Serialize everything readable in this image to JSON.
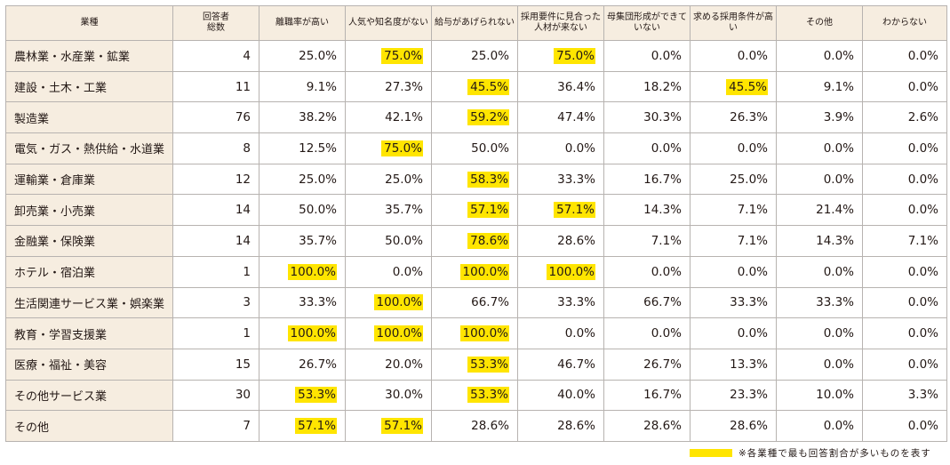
{
  "table": {
    "headers": [
      "業種",
      "回答者\n総数",
      "離職率が高い",
      "人気や知名度がない",
      "給与があげられない",
      "採用要件に見合った人材が来ない",
      "母集団形成ができていない",
      "求める採用条件が高い",
      "その他",
      "わからない"
    ],
    "rows": [
      {
        "industry": "農林業・水産業・鉱業",
        "total": "4",
        "values": [
          "25.0%",
          "75.0%",
          "25.0%",
          "75.0%",
          "0.0%",
          "0.0%",
          "0.0%",
          "0.0%"
        ],
        "highlight": [
          false,
          true,
          false,
          true,
          false,
          false,
          false,
          false
        ]
      },
      {
        "industry": "建設・土木・工業",
        "total": "11",
        "values": [
          "9.1%",
          "27.3%",
          "45.5%",
          "36.4%",
          "18.2%",
          "45.5%",
          "9.1%",
          "0.0%"
        ],
        "highlight": [
          false,
          false,
          true,
          false,
          false,
          true,
          false,
          false
        ]
      },
      {
        "industry": "製造業",
        "total": "76",
        "values": [
          "38.2%",
          "42.1%",
          "59.2%",
          "47.4%",
          "30.3%",
          "26.3%",
          "3.9%",
          "2.6%"
        ],
        "highlight": [
          false,
          false,
          true,
          false,
          false,
          false,
          false,
          false
        ]
      },
      {
        "industry": "電気・ガス・熱供給・水道業",
        "total": "8",
        "values": [
          "12.5%",
          "75.0%",
          "50.0%",
          "0.0%",
          "0.0%",
          "0.0%",
          "0.0%",
          "0.0%"
        ],
        "highlight": [
          false,
          true,
          false,
          false,
          false,
          false,
          false,
          false
        ]
      },
      {
        "industry": "運輸業・倉庫業",
        "total": "12",
        "values": [
          "25.0%",
          "25.0%",
          "58.3%",
          "33.3%",
          "16.7%",
          "25.0%",
          "0.0%",
          "0.0%"
        ],
        "highlight": [
          false,
          false,
          true,
          false,
          false,
          false,
          false,
          false
        ]
      },
      {
        "industry": "卸売業・小売業",
        "total": "14",
        "values": [
          "50.0%",
          "35.7%",
          "57.1%",
          "57.1%",
          "14.3%",
          "7.1%",
          "21.4%",
          "0.0%"
        ],
        "highlight": [
          false,
          false,
          true,
          true,
          false,
          false,
          false,
          false
        ]
      },
      {
        "industry": "金融業・保険業",
        "total": "14",
        "values": [
          "35.7%",
          "50.0%",
          "78.6%",
          "28.6%",
          "7.1%",
          "7.1%",
          "14.3%",
          "7.1%"
        ],
        "highlight": [
          false,
          false,
          true,
          false,
          false,
          false,
          false,
          false
        ]
      },
      {
        "industry": "ホテル・宿泊業",
        "total": "1",
        "values": [
          "100.0%",
          "0.0%",
          "100.0%",
          "100.0%",
          "0.0%",
          "0.0%",
          "0.0%",
          "0.0%"
        ],
        "highlight": [
          true,
          false,
          true,
          true,
          false,
          false,
          false,
          false
        ]
      },
      {
        "industry": "生活関連サービス業・娯楽業",
        "total": "3",
        "values": [
          "33.3%",
          "100.0%",
          "66.7%",
          "33.3%",
          "66.7%",
          "33.3%",
          "33.3%",
          "0.0%"
        ],
        "highlight": [
          false,
          true,
          false,
          false,
          false,
          false,
          false,
          false
        ]
      },
      {
        "industry": "教育・学習支援業",
        "total": "1",
        "values": [
          "100.0%",
          "100.0%",
          "100.0%",
          "0.0%",
          "0.0%",
          "0.0%",
          "0.0%",
          "0.0%"
        ],
        "highlight": [
          true,
          true,
          true,
          false,
          false,
          false,
          false,
          false
        ]
      },
      {
        "industry": "医療・福祉・美容",
        "total": "15",
        "values": [
          "26.7%",
          "20.0%",
          "53.3%",
          "46.7%",
          "26.7%",
          "13.3%",
          "0.0%",
          "0.0%"
        ],
        "highlight": [
          false,
          false,
          true,
          false,
          false,
          false,
          false,
          false
        ]
      },
      {
        "industry": "その他サービス業",
        "total": "30",
        "values": [
          "53.3%",
          "30.0%",
          "53.3%",
          "40.0%",
          "16.7%",
          "23.3%",
          "10.0%",
          "3.3%"
        ],
        "highlight": [
          true,
          false,
          true,
          false,
          false,
          false,
          false,
          false
        ]
      },
      {
        "industry": "その他",
        "total": "7",
        "values": [
          "57.1%",
          "57.1%",
          "28.6%",
          "28.6%",
          "28.6%",
          "28.6%",
          "0.0%",
          "0.0%"
        ],
        "highlight": [
          true,
          true,
          false,
          false,
          false,
          false,
          false,
          false
        ]
      }
    ]
  },
  "legend": {
    "text": "※各業種で最も回答割合が多いものを表す"
  },
  "colors": {
    "highlight": "#ffe500",
    "header_bg": "#f6ede0",
    "border": "#b7b3b0"
  }
}
